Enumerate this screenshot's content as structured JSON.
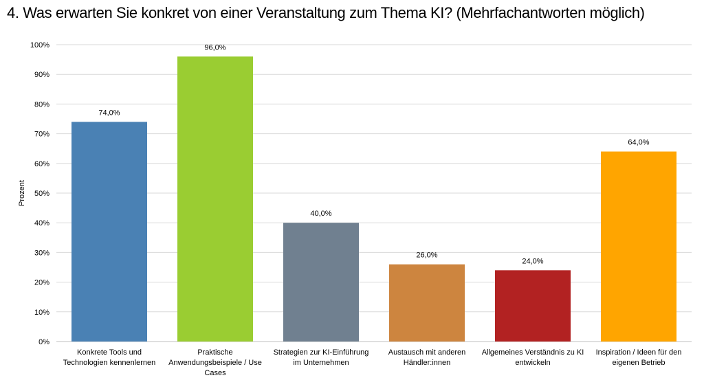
{
  "chart_data": {
    "type": "bar",
    "title": "4. Was erwarten Sie konkret von einer Veranstaltung zum Thema KI? (Mehrfachantworten möglich)",
    "xlabel": "",
    "ylabel": "Prozent",
    "ylim": [
      0,
      100
    ],
    "yticks": [
      "0%",
      "10%",
      "20%",
      "30%",
      "40%",
      "50%",
      "60%",
      "70%",
      "80%",
      "90%",
      "100%"
    ],
    "categories": [
      "Konkrete Tools und Technologien kennenlernen",
      "Praktische Anwendungsbeispiele / Use Cases",
      "Strategien zur KI-Einführung im Unternehmen",
      "Austausch mit anderen Händler:innen",
      "Allgemeines Verständnis zu KI entwickeln",
      "Inspiration / Ideen für den eigenen Betrieb"
    ],
    "values": [
      74.0,
      96.0,
      40.0,
      26.0,
      24.0,
      64.0
    ],
    "data_labels": [
      "74,0%",
      "96,0%",
      "40,0%",
      "26,0%",
      "24,0%",
      "64,0%"
    ],
    "colors": [
      "#4a81b4",
      "#9acd32",
      "#708090",
      "#cd853f",
      "#b22222",
      "#ffa500"
    ],
    "grid": true
  }
}
